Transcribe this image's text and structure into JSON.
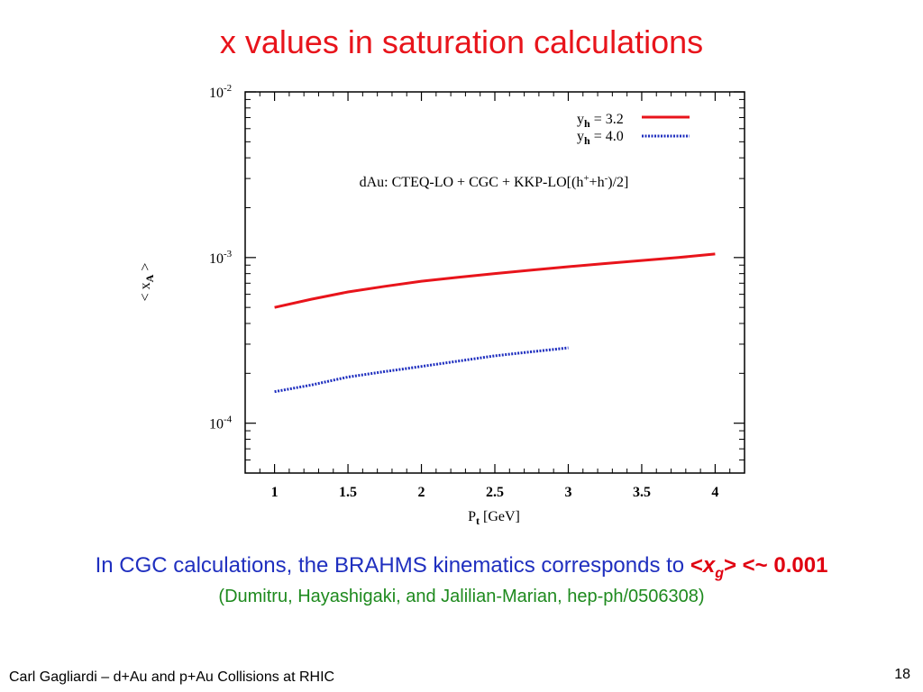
{
  "slide": {
    "title": "x values in saturation calculations",
    "caption": {
      "text": "In CGC calculations, the BRAHMS kinematics corresponds to ",
      "lt": "<",
      "x": "x",
      "sub": "g",
      "gt_approx": "> <~ ",
      "value": "0.001"
    },
    "reference": "(Dumitru, Hayashigaki, and Jalilian-Marian, hep-ph/0506308)",
    "footer_left": "Carl Gagliardi – d+Au and p+Au Collisions at RHIC",
    "page_number": "18"
  },
  "colors": {
    "title": "#e8141b",
    "caption": "#1f2fbf",
    "highlight": "#e00010",
    "reference": "#1e8a1e",
    "series_red": "#e8141b",
    "series_blue": "#1f2fbf"
  },
  "chart_data": {
    "type": "line",
    "annotation": {
      "main": "dAu: CTEQ-LO + CGC + KKP-LO[(h",
      "sup1": "+",
      "mid": "+h",
      "sup2": "-",
      "end": ")/2]"
    },
    "xlabel": {
      "main": "P",
      "sub": "t",
      "rest": " [GeV]"
    },
    "ylabel": {
      "main": "< x",
      "sub": "A",
      "rest": " >"
    },
    "xlim": [
      0.8,
      4.2
    ],
    "ylim": [
      5e-05,
      0.01
    ],
    "yscale": "log",
    "xticks": [
      {
        "v": 1,
        "label": "1"
      },
      {
        "v": 1.5,
        "label": "1.5"
      },
      {
        "v": 2,
        "label": "2"
      },
      {
        "v": 2.5,
        "label": "2.5"
      },
      {
        "v": 3,
        "label": "3"
      },
      {
        "v": 3.5,
        "label": "3.5"
      },
      {
        "v": 4,
        "label": "4"
      }
    ],
    "yticks": [
      {
        "v": 0.01,
        "base": "10",
        "exp": "-2"
      },
      {
        "v": 0.001,
        "base": "10",
        "exp": "-3"
      },
      {
        "v": 0.0001,
        "base": "10",
        "exp": "-4"
      }
    ],
    "grid": false,
    "legend_position": "top-right",
    "series": [
      {
        "name_main": "y",
        "name_sub": "h",
        "name_rest": " = 3.2",
        "style": "solid",
        "color": "#e8141b",
        "x": [
          1.0,
          1.25,
          1.5,
          1.75,
          2.0,
          2.25,
          2.5,
          2.75,
          3.0,
          3.25,
          3.5,
          3.75,
          4.0
        ],
        "y": [
          0.0005,
          0.00056,
          0.00062,
          0.00067,
          0.00072,
          0.00076,
          0.0008,
          0.00084,
          0.00088,
          0.00092,
          0.00096,
          0.001,
          0.00105
        ]
      },
      {
        "name_main": "y",
        "name_sub": "h",
        "name_rest": " = 4.0",
        "style": "dotted",
        "color": "#1f2fbf",
        "x": [
          1.0,
          1.25,
          1.5,
          1.75,
          2.0,
          2.25,
          2.5,
          2.75,
          3.0
        ],
        "y": [
          0.000155,
          0.00017,
          0.00019,
          0.000205,
          0.00022,
          0.000237,
          0.000255,
          0.00027,
          0.000285
        ]
      }
    ]
  }
}
